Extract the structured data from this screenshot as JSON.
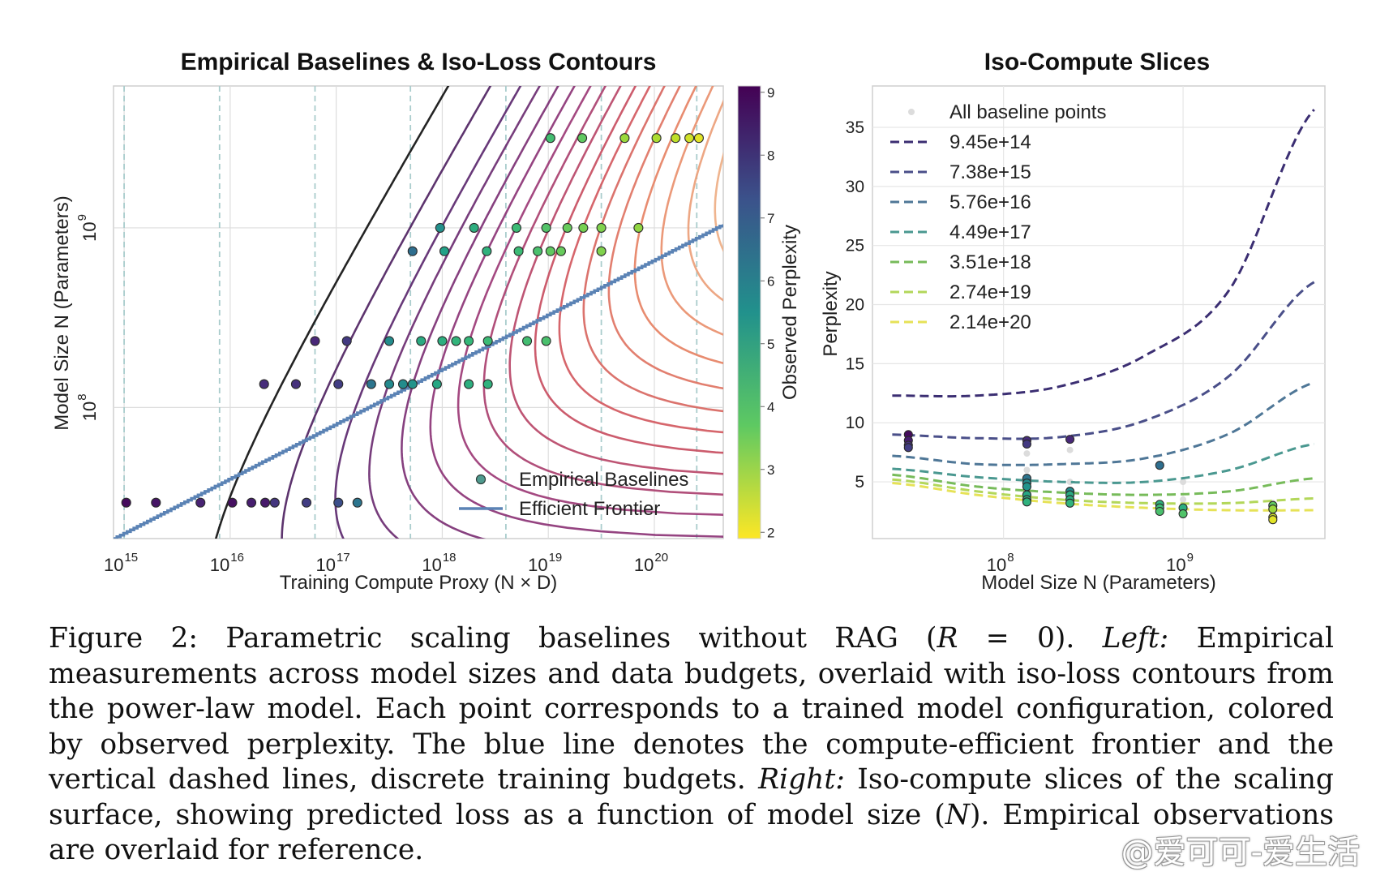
{
  "chart_data": [
    {
      "type": "scatter",
      "title": "Empirical Baselines & Iso-Loss Contours",
      "xlabel": "Training Compute Proxy (N × D)",
      "ylabel": "Model Size N (Parameters)",
      "xscale": "log",
      "yscale": "log",
      "xlim_exp": [
        14.9,
        20.65
      ],
      "ylim_exp": [
        7.27,
        9.79
      ],
      "x_ticks": [
        {
          "base": "10",
          "exp": "15",
          "v": 15
        },
        {
          "base": "10",
          "exp": "16",
          "v": 16
        },
        {
          "base": "10",
          "exp": "17",
          "v": 17
        },
        {
          "base": "10",
          "exp": "18",
          "v": 18
        },
        {
          "base": "10",
          "exp": "19",
          "v": 19
        },
        {
          "base": "10",
          "exp": "20",
          "v": 20
        }
      ],
      "y_ticks": [
        {
          "base": "10",
          "exp": "8",
          "v": 8
        },
        {
          "base": "10",
          "exp": "9",
          "v": 9
        }
      ],
      "budget_lines_exp": [
        15.0,
        15.9,
        16.8,
        17.7,
        18.6,
        19.5,
        20.4
      ],
      "colorbar": {
        "label": "Observed Perplexity",
        "min": 1.9,
        "max": 9.1,
        "ticks": [
          {
            "v": 2,
            "label": "2"
          },
          {
            "v": 3,
            "label": "3"
          },
          {
            "v": 4,
            "label": "4"
          },
          {
            "v": 5,
            "label": "5"
          },
          {
            "v": 6,
            "label": "6"
          },
          {
            "v": 7,
            "label": "7"
          },
          {
            "v": 8,
            "label": "8"
          },
          {
            "v": 9,
            "label": "9"
          }
        ]
      },
      "contour_levels": [
        14,
        10,
        8,
        7,
        6.2,
        5.6,
        5.1,
        4.7,
        4.35,
        4.05,
        3.8,
        3.58,
        3.38,
        3.2,
        3.04,
        2.9,
        2.78,
        2.67,
        2.57,
        2.48,
        2.4
      ],
      "frontier": {
        "x_exp": [
          14.9,
          20.65
        ],
        "y_exp": [
          7.27,
          9.02
        ]
      },
      "legend": {
        "baselines": "Empirical Baselines",
        "frontier": "Efficient Frontier"
      },
      "points": [
        {
          "x": 15.02,
          "y": 7.47,
          "p": 8.9
        },
        {
          "x": 15.3,
          "y": 7.47,
          "p": 8.7
        },
        {
          "x": 15.72,
          "y": 7.47,
          "p": 8.4
        },
        {
          "x": 16.02,
          "y": 7.47,
          "p": 8.8
        },
        {
          "x": 16.2,
          "y": 7.47,
          "p": 8.5
        },
        {
          "x": 16.33,
          "y": 7.47,
          "p": 8.6
        },
        {
          "x": 16.42,
          "y": 7.47,
          "p": 8.0
        },
        {
          "x": 16.72,
          "y": 7.47,
          "p": 7.8
        },
        {
          "x": 17.02,
          "y": 7.47,
          "p": 7.4
        },
        {
          "x": 17.2,
          "y": 7.47,
          "p": 6.3
        },
        {
          "x": 16.32,
          "y": 8.13,
          "p": 8.2
        },
        {
          "x": 16.62,
          "y": 8.13,
          "p": 8.1
        },
        {
          "x": 17.02,
          "y": 8.13,
          "p": 7.8
        },
        {
          "x": 17.33,
          "y": 8.13,
          "p": 6.3
        },
        {
          "x": 17.5,
          "y": 8.13,
          "p": 5.7
        },
        {
          "x": 17.63,
          "y": 8.13,
          "p": 5.6
        },
        {
          "x": 17.72,
          "y": 8.13,
          "p": 5.4
        },
        {
          "x": 17.95,
          "y": 8.13,
          "p": 4.8
        },
        {
          "x": 18.25,
          "y": 8.13,
          "p": 4.6
        },
        {
          "x": 18.43,
          "y": 8.13,
          "p": 4.5
        },
        {
          "x": 16.8,
          "y": 8.37,
          "p": 8.3
        },
        {
          "x": 17.1,
          "y": 8.37,
          "p": 7.9
        },
        {
          "x": 17.5,
          "y": 8.37,
          "p": 5.6
        },
        {
          "x": 17.8,
          "y": 8.37,
          "p": 4.7
        },
        {
          "x": 18.0,
          "y": 8.37,
          "p": 4.6
        },
        {
          "x": 18.13,
          "y": 8.37,
          "p": 4.4
        },
        {
          "x": 18.25,
          "y": 8.37,
          "p": 4.3
        },
        {
          "x": 18.43,
          "y": 8.37,
          "p": 4.2
        },
        {
          "x": 18.8,
          "y": 8.37,
          "p": 4.1
        },
        {
          "x": 18.98,
          "y": 8.37,
          "p": 4.0
        },
        {
          "x": 17.72,
          "y": 8.87,
          "p": 6.5
        },
        {
          "x": 18.02,
          "y": 8.87,
          "p": 5.0
        },
        {
          "x": 18.42,
          "y": 8.87,
          "p": 4.5
        },
        {
          "x": 18.72,
          "y": 8.87,
          "p": 4.2
        },
        {
          "x": 18.9,
          "y": 8.87,
          "p": 4.0
        },
        {
          "x": 19.02,
          "y": 8.87,
          "p": 3.7
        },
        {
          "x": 19.12,
          "y": 8.87,
          "p": 3.6
        },
        {
          "x": 19.5,
          "y": 8.87,
          "p": 3.3
        },
        {
          "x": 17.98,
          "y": 9.0,
          "p": 5.5
        },
        {
          "x": 18.3,
          "y": 9.0,
          "p": 4.6
        },
        {
          "x": 18.7,
          "y": 9.0,
          "p": 4.2
        },
        {
          "x": 18.98,
          "y": 9.0,
          "p": 3.9
        },
        {
          "x": 19.18,
          "y": 9.0,
          "p": 3.6
        },
        {
          "x": 19.33,
          "y": 9.0,
          "p": 3.4
        },
        {
          "x": 19.5,
          "y": 9.0,
          "p": 3.3
        },
        {
          "x": 19.85,
          "y": 9.0,
          "p": 3.1
        },
        {
          "x": 19.02,
          "y": 9.5,
          "p": 4.1
        },
        {
          "x": 19.32,
          "y": 9.5,
          "p": 3.7
        },
        {
          "x": 19.72,
          "y": 9.5,
          "p": 3.0
        },
        {
          "x": 20.02,
          "y": 9.5,
          "p": 2.8
        },
        {
          "x": 20.2,
          "y": 9.5,
          "p": 2.6
        },
        {
          "x": 20.33,
          "y": 9.5,
          "p": 2.4
        },
        {
          "x": 20.42,
          "y": 9.5,
          "p": 2.2
        }
      ]
    },
    {
      "type": "line",
      "title": "Iso-Compute Slices",
      "xlabel": "Model Size N (Parameters)",
      "ylabel": "Perplexity",
      "xscale": "log",
      "xlim_exp": [
        7.27,
        9.79
      ],
      "ylim": [
        0.2,
        38.5
      ],
      "x_ticks": [
        {
          "base": "10",
          "exp": "8",
          "v": 8
        },
        {
          "base": "10",
          "exp": "9",
          "v": 9
        }
      ],
      "y_ticks": [
        5,
        10,
        15,
        20,
        25,
        30,
        35
      ],
      "scatter_label": "All baseline points",
      "series": [
        {
          "name": "9.45e+14",
          "color": "#3b2e72",
          "anchors": [
            12.3,
            12.3,
            13.1,
            15.7,
            21.3,
            36.5
          ]
        },
        {
          "name": "7.38e+15",
          "color": "#4a4f89",
          "anchors": [
            9.0,
            8.7,
            8.8,
            10.2,
            14.0,
            21.9
          ]
        },
        {
          "name": "5.76e+16",
          "color": "#4f7797",
          "anchors": [
            7.2,
            6.5,
            6.5,
            7.0,
            9.1,
            13.4
          ]
        },
        {
          "name": "4.49e+17",
          "color": "#4a9890",
          "anchors": [
            6.1,
            5.4,
            5.0,
            5.0,
            6.0,
            8.2
          ]
        },
        {
          "name": "3.51e+18",
          "color": "#77bb5a",
          "anchors": [
            5.6,
            4.6,
            4.1,
            3.9,
            4.2,
            5.3
          ]
        },
        {
          "name": "2.74e+19",
          "color": "#b3d75a",
          "anchors": [
            5.2,
            4.2,
            3.5,
            3.2,
            3.2,
            3.6
          ]
        },
        {
          "name": "2.14e+20",
          "color": "#e6e257",
          "anchors": [
            4.9,
            3.9,
            3.2,
            2.8,
            2.6,
            2.6
          ]
        }
      ],
      "empirical": [
        {
          "x": 7.47,
          "y": 9.0,
          "p": 8.9
        },
        {
          "x": 7.47,
          "y": 8.5,
          "p": 8.5
        },
        {
          "x": 7.47,
          "y": 8.1,
          "p": 8.1
        },
        {
          "x": 7.47,
          "y": 7.9,
          "p": 7.8
        },
        {
          "x": 8.13,
          "y": 8.5,
          "p": 8.2
        },
        {
          "x": 8.13,
          "y": 8.2,
          "p": 7.9
        },
        {
          "x": 8.13,
          "y": 5.3,
          "p": 6.3
        },
        {
          "x": 8.13,
          "y": 4.9,
          "p": 5.6
        },
        {
          "x": 8.13,
          "y": 4.6,
          "p": 5.4
        },
        {
          "x": 8.13,
          "y": 3.9,
          "p": 4.8
        },
        {
          "x": 8.13,
          "y": 3.5,
          "p": 4.6
        },
        {
          "x": 8.13,
          "y": 3.3,
          "p": 4.5
        },
        {
          "x": 8.37,
          "y": 8.6,
          "p": 8.3
        },
        {
          "x": 8.37,
          "y": 4.2,
          "p": 5.6
        },
        {
          "x": 8.37,
          "y": 3.9,
          "p": 4.7
        },
        {
          "x": 8.37,
          "y": 3.5,
          "p": 4.6
        },
        {
          "x": 8.37,
          "y": 3.2,
          "p": 4.4
        },
        {
          "x": 8.87,
          "y": 6.4,
          "p": 6.5
        },
        {
          "x": 8.87,
          "y": 3.1,
          "p": 4.5
        },
        {
          "x": 8.87,
          "y": 2.8,
          "p": 4.2
        },
        {
          "x": 8.87,
          "y": 2.5,
          "p": 4.0
        },
        {
          "x": 9.0,
          "y": 2.8,
          "p": 4.6
        },
        {
          "x": 9.0,
          "y": 2.3,
          "p": 3.9
        },
        {
          "x": 9.5,
          "y": 3.0,
          "p": 3.7
        },
        {
          "x": 9.5,
          "y": 2.7,
          "p": 3.0
        },
        {
          "x": 9.5,
          "y": 2.0,
          "p": 2.4
        },
        {
          "x": 9.5,
          "y": 1.8,
          "p": 2.2
        }
      ],
      "grey_points": [
        {
          "x": 8.13,
          "y": 7.4
        },
        {
          "x": 8.13,
          "y": 6.0
        },
        {
          "x": 8.37,
          "y": 7.7
        },
        {
          "x": 8.37,
          "y": 5.0
        },
        {
          "x": 9.0,
          "y": 5.0
        },
        {
          "x": 9.0,
          "y": 3.5
        },
        {
          "x": 9.5,
          "y": 3.2
        }
      ]
    }
  ],
  "caption": {
    "label": "Figure 2:",
    "text_1": "Parametric scaling baselines without RAG (",
    "var_r": "R",
    "text_2": " = 0).",
    "left_label": "Left:",
    "text_3": "Empirical measurements across model sizes and data budgets, overlaid with iso-loss contours from the power-law model. Each point corresponds to a trained model configuration, colored by observed perplexity. The blue line denotes the compute-efficient frontier and the vertical dashed lines, discrete training budgets.",
    "right_label": "Right:",
    "text_4": "Iso-compute slices of the scaling surface, showing predicted loss as a function of model size (",
    "var_n": "N",
    "text_5": "). Empirical observations are overlaid for reference."
  },
  "watermark": "@爱可可-爱生活"
}
